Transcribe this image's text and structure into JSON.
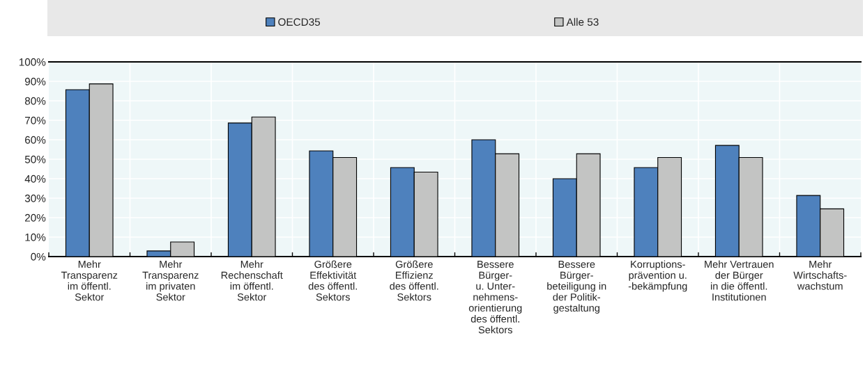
{
  "chart_data": {
    "type": "bar",
    "categories": [
      "Mehr\nTransparenz\nim öffentl.\nSektor",
      "Mehr\nTransparenz\nim privaten\nSektor",
      "Mehr\nRechenschaft\nim öffentl.\nSektor",
      "Größere\nEffektivität\ndes öffentl.\nSektors",
      "Größere\nEffizienz\ndes öffentl.\nSektors",
      "Bessere\nBürger-\nu. Unter-\nnehmens-\norientierung\ndes öffentl.\nSektors",
      "Bessere\nBürger-\nbeteiligung in\nder Politik-\ngestaltung",
      "Korruptions-\nprävention u.\n-bekämpfung",
      "Mehr Vertrauen\nder Bürger\nin die öffentl.\nInstitutionen",
      "Mehr\nWirtschafts-\nwachstum"
    ],
    "series": [
      {
        "name": "OECD35",
        "color": "#4e81bd",
        "values": [
          85.7,
          2.9,
          68.6,
          54.3,
          45.7,
          60.0,
          40.0,
          45.7,
          57.1,
          31.4
        ]
      },
      {
        "name": "Alle 53",
        "color": "#c3c4c3",
        "values": [
          88.7,
          7.5,
          71.7,
          50.9,
          43.4,
          52.8,
          52.8,
          50.9,
          50.9,
          24.5
        ]
      }
    ],
    "ylim": [
      0,
      100
    ],
    "yticks": [
      {
        "value": 0,
        "label": "0%"
      },
      {
        "value": 10,
        "label": "10%"
      },
      {
        "value": 20,
        "label": "20%"
      },
      {
        "value": 30,
        "label": "30%"
      },
      {
        "value": 40,
        "label": "40%"
      },
      {
        "value": 50,
        "label": "50%"
      },
      {
        "value": 60,
        "label": "60%"
      },
      {
        "value": 70,
        "label": "70%"
      },
      {
        "value": 80,
        "label": "80%"
      },
      {
        "value": 90,
        "label": "90%"
      },
      {
        "value": 100,
        "label": "100%"
      }
    ],
    "grid": true,
    "legend": "top"
  }
}
